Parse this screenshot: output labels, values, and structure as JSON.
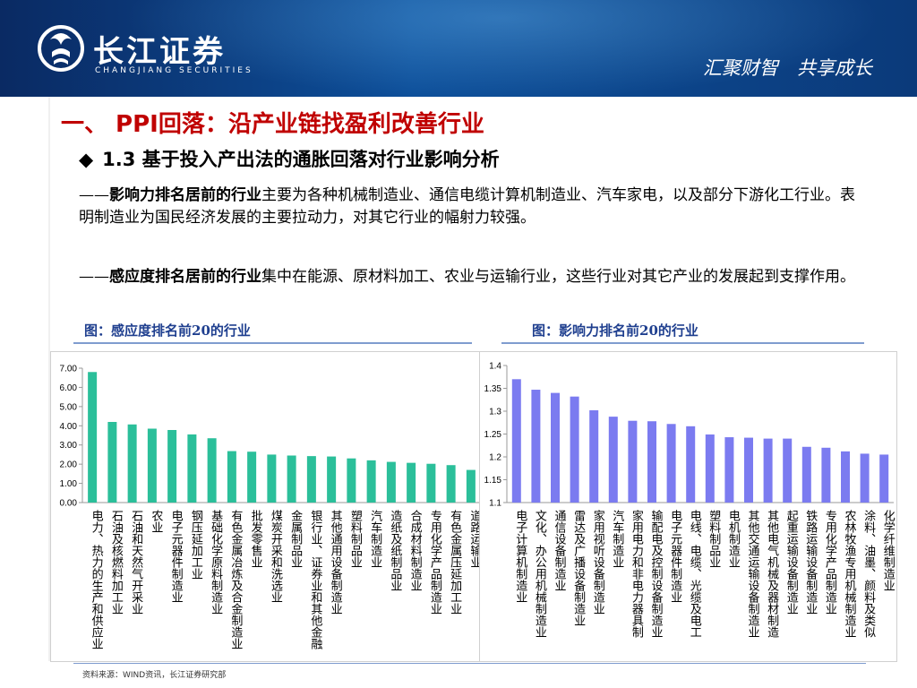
{
  "header": {
    "company_name": "长江证券",
    "company_name_en": "CHANGJIANG SECURITIES",
    "slogan": "汇聚财智　共享成长"
  },
  "title": "一、 PPI回落：沿产业链找盈利改善行业",
  "subtitle": "1.3 基于投入产出法的通胀回落对行业影响分析",
  "paragraphs": [
    {
      "prefix": "——",
      "bold": "影响力排名居前的行业",
      "text": "主要为各种机械制造业、通信电缆计算机制造业、汽车家电，以及部分下游化工行业。表明制造业为国民经济发展的主要拉动力，对其它行业的幅射力较强。"
    },
    {
      "prefix": "——",
      "bold": "感应度排名居前的行业",
      "text": "集中在能源、原材料加工、农业与运输行业，这些行业对其它产业的发展起到支撑作用。"
    }
  ],
  "captions": {
    "left": "图：感应度排名前20的行业",
    "right": "图：影响力排名前20的行业"
  },
  "source": "资料来源：WIND资讯，长江证券研究部",
  "colors": {
    "banner": "#0b3d80",
    "title": "#c00000",
    "caption": "#1f3f8f",
    "bar_left": "#2bbf9a",
    "bar_right": "#7b7bf0"
  },
  "chart_data": [
    {
      "type": "bar",
      "categories": [
        "电力、热力的生产和供应业",
        "石油及核燃料加工业",
        "石油和天然气开采业",
        "农业",
        "电子元器件制造业",
        "钢压延加工业",
        "基础化学原料制造业",
        "有色金属冶炼及合金制造业",
        "批发零售业",
        "煤炭开采和洗选业",
        "金属制品业",
        "银行业、证券业和其他金融",
        "其他通用设备制造业",
        "塑料制品业",
        "汽车制造业",
        "造纸及纸制品业",
        "合成材料制造业",
        "专用化学产品制造业",
        "有色金属压延加工业",
        "道路运输业"
      ],
      "values": [
        6.8,
        4.2,
        4.07,
        3.85,
        3.78,
        3.55,
        3.35,
        2.68,
        2.65,
        2.5,
        2.45,
        2.42,
        2.4,
        2.3,
        2.2,
        2.12,
        2.07,
        2.02,
        1.95,
        1.7
      ],
      "ylim": [
        0,
        7
      ],
      "yticks": [
        "0.00",
        "1.00",
        "2.00",
        "3.00",
        "4.00",
        "5.00",
        "6.00",
        "7.00"
      ],
      "grid": false
    },
    {
      "type": "bar",
      "categories": [
        "电子计算机制造业",
        "文化、办公用机械制造业",
        "通信设备制造业",
        "雷达及广播设备制造业",
        "家用视听设备制造业",
        "汽车制造业",
        "家用电力和非电力器具制",
        "输配电及控制设备制造业",
        "电子元器件制造业",
        "电线、电缆、光缆及电工",
        "塑料制品业",
        "电机制造业",
        "其他交通运输设备制造业",
        "其他电气机械及器材制造",
        "起重运输设备制造业",
        "铁路运输设备制造业",
        "专用化学产品制造业",
        "农林牧渔专用机械制造业",
        "涂料、油墨、颜料及类似",
        "化学纤维制造业"
      ],
      "values": [
        1.37,
        1.347,
        1.34,
        1.332,
        1.302,
        1.288,
        1.279,
        1.278,
        1.272,
        1.267,
        1.249,
        1.243,
        1.242,
        1.24,
        1.24,
        1.222,
        1.22,
        1.212,
        1.207,
        1.205
      ],
      "ylim": [
        1.1,
        1.4
      ],
      "yticks": [
        "1.1",
        "1.15",
        "1.2",
        "1.25",
        "1.3",
        "1.35",
        "1.4"
      ],
      "grid": false
    }
  ]
}
